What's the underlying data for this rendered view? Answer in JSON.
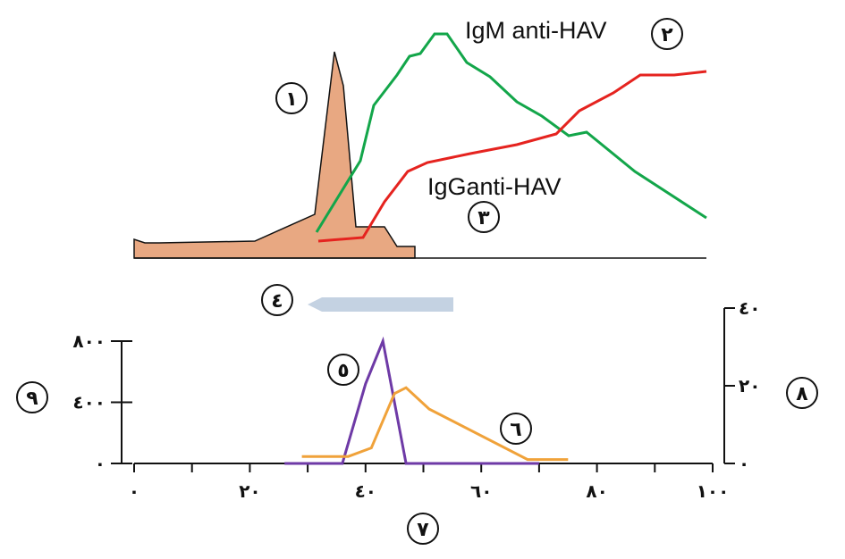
{
  "labels": {
    "igm": "IgM  anti-HAV",
    "igg": "IgGanti-HAV",
    "marker_1": "١",
    "marker_2": "٢",
    "marker_3": "٣",
    "marker_4": "٤",
    "marker_5": "٥",
    "marker_6": "٦",
    "marker_7": "٧",
    "marker_8": "٨",
    "marker_9": "٩"
  },
  "colors": {
    "virus_fill": "#e8a882",
    "igm": "#13a64a",
    "igg": "#e5231f",
    "arrow": "#c4d2e2",
    "purple": "#6e3aa6",
    "orange": "#f0a23a"
  },
  "chart_data": [
    {
      "type": "area",
      "description_series": [
        {
          "name": "",
          "values_rel": [
            0.03,
            0.12,
            0.15,
            0.25,
            1.0,
            0.25,
            0.1,
            0.05,
            0.0
          ]
        },
        {
          "name": "IgM  anti-HAV",
          "values_rel": [
            0.12,
            0.45,
            0.7,
            0.85,
            0.9,
            1.0,
            0.95,
            0.8,
            0.6,
            0.55,
            0.4,
            0.2
          ]
        },
        {
          "name": "IgGanti-HAV",
          "values_rel": [
            0.1,
            0.12,
            0.3,
            0.45,
            0.5,
            0.55,
            0.6,
            0.75,
            0.9,
            0.95,
            1.0
          ]
        }
      ]
    },
    {
      "type": "line",
      "x_ticks": [
        "٠",
        "٢٠",
        "٤٠",
        "٦٠",
        "٨٠",
        "١٠٠"
      ],
      "xlim": [
        0,
        100
      ],
      "y_left_ticks": [
        "٠",
        "٤٠٠",
        "٨٠٠"
      ],
      "ylim_left": [
        0,
        800
      ],
      "y_right_ticks": [
        "٠",
        "٢٠",
        "٤٠"
      ],
      "ylim_right": [
        0,
        40
      ],
      "series": [
        {
          "name": "",
          "axis": "left",
          "x": [
            26,
            36,
            40,
            43,
            47,
            51,
            70
          ],
          "y": [
            0,
            0,
            520,
            800,
            0,
            0,
            0
          ]
        },
        {
          "name": "",
          "axis": "right",
          "x": [
            29,
            37,
            41,
            45,
            47,
            51,
            68,
            75
          ],
          "y": [
            1.8,
            1.8,
            4,
            18,
            19.5,
            14,
            1,
            1
          ]
        }
      ]
    }
  ]
}
